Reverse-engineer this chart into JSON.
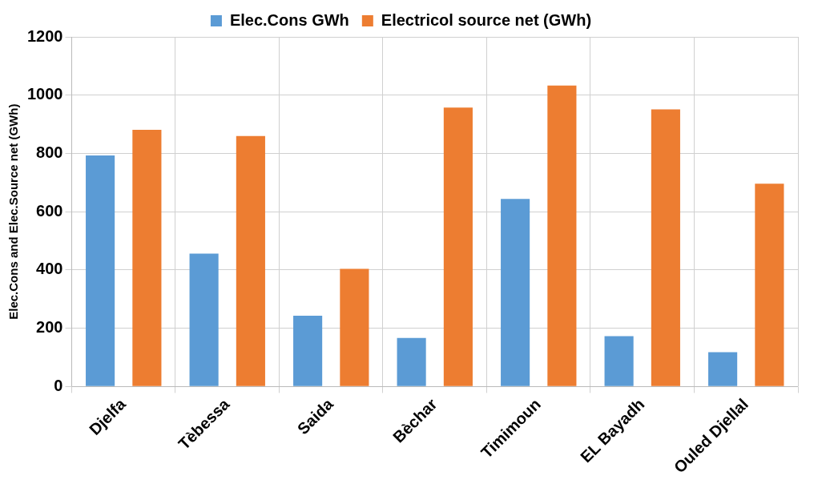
{
  "chart_data": {
    "type": "bar",
    "ylabel": "Elec.Cons and Elec.Source net (GWh)",
    "categories": [
      "Djelfa",
      "Tèbessa",
      "Saida",
      "Bèchar",
      "Timimoun",
      "EL Bayadh",
      "Ouled Djellal"
    ],
    "series": [
      {
        "name": "Elec.Cons GWh",
        "color": "#5b9bd5",
        "values": [
          793,
          456,
          243,
          167,
          644,
          173,
          118
        ]
      },
      {
        "name": "Electricol source net (GWh)",
        "color": "#ed7d31",
        "values": [
          881,
          860,
          404,
          957,
          1033,
          951,
          696
        ]
      }
    ],
    "ylim": [
      0,
      1200
    ],
    "yticks": [
      0,
      200,
      400,
      600,
      800,
      1000,
      1200
    ],
    "grid": true,
    "legend": "top"
  }
}
